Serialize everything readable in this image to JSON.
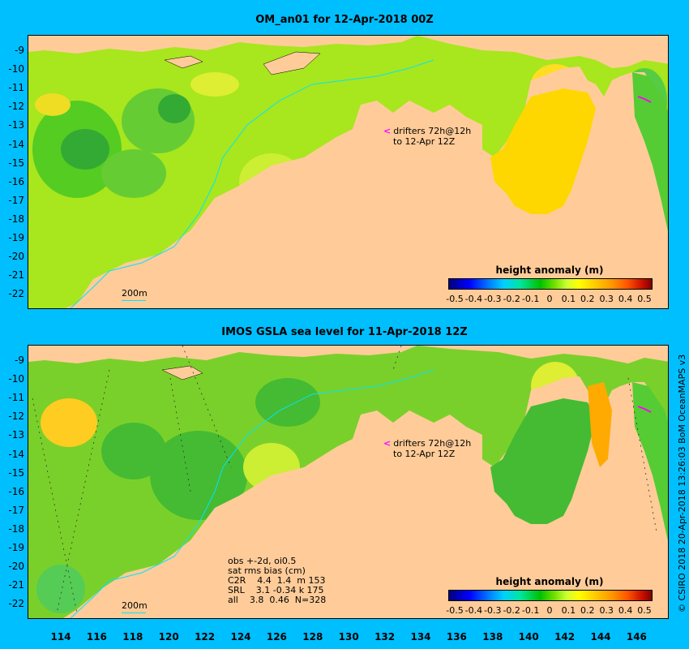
{
  "panels": [
    {
      "title": "OM_an01 for 12-Apr-2018 00Z",
      "drifter_text": [
        "drifters 72h@12h",
        "to 12-Apr 12Z"
      ],
      "depth_contour_label": "200m",
      "colorbar_title": "height anomaly (m)",
      "y_ticks": [
        "-9",
        "-10",
        "-11",
        "-12",
        "-13",
        "-14",
        "-15",
        "-16",
        "-17",
        "-18",
        "-19",
        "-20",
        "-21",
        "-22"
      ]
    },
    {
      "title": "IMOS GSLA sea level  for 11-Apr-2018 12Z",
      "drifter_text": [
        "drifters 72h@12h",
        "to 12-Apr 12Z"
      ],
      "depth_contour_label": "200m",
      "colorbar_title": "height anomaly (m)",
      "y_ticks": [
        "-9",
        "-10",
        "-11",
        "-12",
        "-13",
        "-14",
        "-15",
        "-16",
        "-17",
        "-18",
        "-19",
        "-20",
        "-21",
        "-22"
      ],
      "stats": [
        "obs +-2d, oi0.5",
        "sat rms bias (cm)",
        "C2R    4.4  1.4  m 153",
        "SRL    3.1 -0.34 k 175",
        "all    3.8  0.46  N=328"
      ]
    }
  ],
  "colorbar_ticks": [
    "-0.5",
    "-0.4",
    "-0.3",
    "-0.2",
    "-0.1",
    "0",
    "0.1",
    "0.2",
    "0.3",
    "0.4",
    "0.5"
  ],
  "x_ticks": [
    "114",
    "116",
    "118",
    "120",
    "122",
    "124",
    "126",
    "128",
    "130",
    "132",
    "134",
    "136",
    "138",
    "140",
    "142",
    "144",
    "146"
  ],
  "side_credit": "© CSIRO 2018  20-Apr-2018 13:26:03 BoM OceanMAPS v3",
  "colors": {
    "background": "#00bfff",
    "land": "#ffcc99",
    "shelf_gray": "#999999",
    "contour_200m": "#00e5ff",
    "drifter": "#ff00ff"
  }
}
